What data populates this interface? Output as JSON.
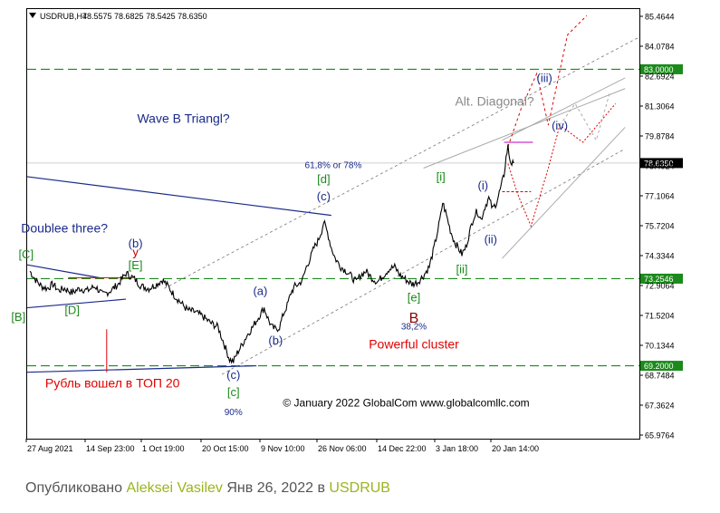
{
  "chart_data": {
    "type": "line",
    "symbol": "USDRUB,H4",
    "ohlc_header": "78.5575 78.6825 78.5425 78.6350",
    "current_price": 78.635,
    "ylim": [
      65.9764,
      85.4644
    ],
    "y_ticks": [
      "85.4644",
      "84.0784",
      "82.6924",
      "81.3064",
      "79.8784",
      "78.4924",
      "77.1064",
      "75.7204",
      "74.3344",
      "72.9064",
      "71.5204",
      "70.1344",
      "68.7484",
      "67.3624",
      "65.9764"
    ],
    "x_ticks": [
      "27 Aug 2021",
      "14 Sep 23:00",
      "1 Oct 19:00",
      "20 Oct 15:00",
      "9 Nov 10:00",
      "26 Nov 06:00",
      "14 Dec 22:00",
      "3 Jan 18:00",
      "20 Jan 14:00"
    ],
    "level_labels": [
      {
        "value": 83.0,
        "text": "83.0000",
        "color": "#1b8a1b"
      },
      {
        "value": 78.635,
        "text": "78.6350",
        "color": "#000000"
      },
      {
        "value": 73.2546,
        "text": "73.2546",
        "color": "#1b8a1b"
      },
      {
        "value": 69.2,
        "text": "69.2000",
        "color": "#1b8a1b"
      }
    ],
    "price_path": [
      [
        0,
        73.6
      ],
      [
        3,
        73.2
      ],
      [
        6,
        72.9
      ],
      [
        9,
        72.8
      ],
      [
        12,
        73.0
      ],
      [
        15,
        72.7
      ],
      [
        18,
        72.8
      ],
      [
        22,
        72.6
      ],
      [
        26,
        72.8
      ],
      [
        30,
        72.7
      ],
      [
        34,
        72.9
      ],
      [
        38,
        72.5
      ],
      [
        42,
        72.7
      ],
      [
        46,
        73.0
      ],
      [
        50,
        73.5
      ],
      [
        52,
        73.4
      ],
      [
        55,
        73.2
      ],
      [
        58,
        72.9
      ],
      [
        62,
        72.8
      ],
      [
        66,
        73.0
      ],
      [
        69,
        73.2
      ],
      [
        72,
        72.9
      ],
      [
        75,
        72.5
      ],
      [
        78,
        72.2
      ],
      [
        82,
        71.8
      ],
      [
        86,
        71.7
      ],
      [
        90,
        71.5
      ],
      [
        94,
        71.2
      ],
      [
        98,
        71.0
      ],
      [
        100,
        70.5
      ],
      [
        102,
        70.0
      ],
      [
        104,
        69.5
      ],
      [
        106,
        69.4
      ],
      [
        108,
        69.8
      ],
      [
        110,
        70.1
      ],
      [
        113,
        70.6
      ],
      [
        116,
        71.0
      ],
      [
        118,
        71.3
      ],
      [
        120,
        71.6
      ],
      [
        122,
        71.9
      ],
      [
        124,
        71.4
      ],
      [
        126,
        71.0
      ],
      [
        128,
        70.9
      ],
      [
        130,
        71.0
      ],
      [
        132,
        71.6
      ],
      [
        134,
        72.0
      ],
      [
        136,
        72.6
      ],
      [
        138,
        72.9
      ],
      [
        140,
        73.0
      ],
      [
        142,
        73.2
      ],
      [
        144,
        73.8
      ],
      [
        146,
        74.2
      ],
      [
        148,
        74.7
      ],
      [
        150,
        75.0
      ],
      [
        152,
        75.5
      ],
      [
        153,
        75.9
      ],
      [
        155,
        75.4
      ],
      [
        157,
        74.7
      ],
      [
        159,
        74.2
      ],
      [
        162,
        73.8
      ],
      [
        165,
        73.6
      ],
      [
        168,
        73.3
      ],
      [
        170,
        73.1
      ],
      [
        172,
        73.4
      ],
      [
        175,
        73.6
      ],
      [
        178,
        73.3
      ],
      [
        181,
        73.1
      ],
      [
        184,
        73.4
      ],
      [
        187,
        73.7
      ],
      [
        190,
        73.8
      ],
      [
        193,
        73.4
      ],
      [
        196,
        73.2
      ],
      [
        199,
        73.0
      ],
      [
        202,
        73.1
      ],
      [
        205,
        73.4
      ],
      [
        208,
        73.8
      ],
      [
        210,
        74.5
      ],
      [
        212,
        75.3
      ],
      [
        214,
        76.2
      ],
      [
        215,
        76.8
      ],
      [
        217,
        76.2
      ],
      [
        219,
        75.5
      ],
      [
        221,
        75.0
      ],
      [
        223,
        74.7
      ],
      [
        225,
        74.4
      ],
      [
        227,
        74.7
      ],
      [
        229,
        75.4
      ],
      [
        231,
        76.1
      ],
      [
        233,
        76.4
      ],
      [
        235,
        76.0
      ],
      [
        237,
        76.6
      ],
      [
        239,
        77.0
      ],
      [
        241,
        76.5
      ],
      [
        243,
        76.8
      ],
      [
        245,
        77.4
      ],
      [
        247,
        78.1
      ],
      [
        248,
        78.9
      ],
      [
        249,
        79.4
      ],
      [
        250,
        78.8
      ],
      [
        251,
        78.6
      ],
      [
        252,
        78.63
      ]
    ],
    "wave_labels": [
      {
        "x": -2,
        "y": 74.2,
        "text": "[C]",
        "color": "#1b8a1b"
      },
      {
        "x": 55,
        "y": 74.7,
        "text": "(b)",
        "color": "#1a2a8a"
      },
      {
        "x": 55,
        "y": 74.3,
        "text": "y",
        "color": "#c00000"
      },
      {
        "x": 55,
        "y": 73.7,
        "text": "[E]",
        "color": "#1b8a1b"
      },
      {
        "x": -6,
        "y": 71.3,
        "text": "[B]",
        "color": "#1b8a1b"
      },
      {
        "x": 22,
        "y": 71.6,
        "text": "[D]",
        "color": "#1b8a1b"
      },
      {
        "x": 120,
        "y": 72.5,
        "text": "(a)",
        "color": "#1a2a8a"
      },
      {
        "x": 128,
        "y": 70.2,
        "text": "(b)",
        "color": "#1a2a8a"
      },
      {
        "x": 106,
        "y": 68.6,
        "text": "(c)",
        "color": "#1a2a8a"
      },
      {
        "x": 106,
        "y": 67.8,
        "text": "[c]",
        "color": "#1b8a1b"
      },
      {
        "x": 153,
        "y": 77.7,
        "text": "[d]",
        "color": "#1b8a1b"
      },
      {
        "x": 153,
        "y": 76.9,
        "text": "(c)",
        "color": "#1a2a8a"
      },
      {
        "x": 214,
        "y": 77.8,
        "text": "[i]",
        "color": "#1b8a1b"
      },
      {
        "x": 236,
        "y": 77.4,
        "text": "(i)",
        "color": "#1a2a8a"
      },
      {
        "x": 240,
        "y": 74.9,
        "text": "(ii)",
        "color": "#1a2a8a"
      },
      {
        "x": 225,
        "y": 73.5,
        "text": "[ii]",
        "color": "#1b8a1b"
      },
      {
        "x": 200,
        "y": 72.2,
        "text": "[e]",
        "color": "#1b8a1b"
      },
      {
        "x": 200,
        "y": 71.2,
        "text": "B",
        "color": "#8b0000"
      },
      {
        "x": 268,
        "y": 82.4,
        "text": "(iii)",
        "color": "#1a2a8a"
      },
      {
        "x": 276,
        "y": 80.2,
        "text": "(iv)",
        "color": "#1a2a8a"
      }
    ],
    "annotations": [
      {
        "x": 80,
        "y": 80.5,
        "text": "Wave B Triangl?",
        "color": "#1a2a8a",
        "size": 14
      },
      {
        "x": 18,
        "y": 75.4,
        "text": "Doublee three?",
        "color": "#1a2a8a",
        "size": 14
      },
      {
        "x": 158,
        "y": 78.4,
        "text": "61,8% or 78%",
        "color": "#1a2a8a",
        "size": 10
      },
      {
        "x": 242,
        "y": 81.3,
        "text": "Alt. Diagonal?",
        "color": "#888888",
        "size": 14
      },
      {
        "x": 200,
        "y": 70.9,
        "text": "38,2%",
        "color": "#1a2a8a",
        "size": 10
      },
      {
        "x": 200,
        "y": 70.0,
        "text": "Powerful cluster",
        "color": "#e00000",
        "size": 14
      },
      {
        "x": 106,
        "y": 66.9,
        "text": "90%",
        "color": "#1a2a8a",
        "size": 10
      },
      {
        "x": 43,
        "y": 68.2,
        "text": "Рубль вошел в ТОП 20",
        "color": "#e00000",
        "size": 14
      },
      {
        "x": 196,
        "y": 67.3,
        "text": "© January 2022 GlobalCom www.globalcomllc.com",
        "color": "#000000",
        "size": 12
      }
    ],
    "lines": [
      {
        "x1": -7,
        "y1": 78.0,
        "x2": 157,
        "y2": 76.2,
        "color": "#1a2a8a",
        "width": 1.2,
        "dash": ""
      },
      {
        "x1": -7,
        "y1": 73.9,
        "x2": 36,
        "y2": 73.3,
        "color": "#1a2a8a",
        "width": 1.2,
        "dash": ""
      },
      {
        "x1": -7,
        "y1": 71.9,
        "x2": 50,
        "y2": 72.3,
        "color": "#1a2a8a",
        "width": 1.2,
        "dash": ""
      },
      {
        "x1": -7,
        "y1": 68.9,
        "x2": 118,
        "y2": 69.2,
        "color": "#1a2a8a",
        "width": 1.2,
        "dash": ""
      },
      {
        "x1": 40,
        "y1": 70.9,
        "x2": 40,
        "y2": 68.9,
        "color": "#e00000",
        "width": 1,
        "dash": ""
      },
      {
        "x1": 100,
        "y1": 68.8,
        "x2": 310,
        "y2": 79.3,
        "color": "#777777",
        "width": 0.8,
        "dash": "3,3"
      },
      {
        "x1": 70,
        "y1": 72.8,
        "x2": 320,
        "y2": 84.5,
        "color": "#777777",
        "width": 0.8,
        "dash": "3,3"
      },
      {
        "x1": 205,
        "y1": 78.4,
        "x2": 310,
        "y2": 82.1,
        "color": "#aaaaaa",
        "width": 1,
        "dash": ""
      },
      {
        "x1": 246,
        "y1": 79.7,
        "x2": 310,
        "y2": 82.6,
        "color": "#aaaaaa",
        "width": 1,
        "dash": ""
      },
      {
        "x1": 246,
        "y1": 74.2,
        "x2": 310,
        "y2": 80.3,
        "color": "#aaaaaa",
        "width": 1,
        "dash": ""
      },
      {
        "x1": 247,
        "y1": 79.6,
        "x2": 262,
        "y2": 79.6,
        "color": "#cc33cc",
        "width": 1.2,
        "dash": ""
      },
      {
        "x1": 246,
        "y1": 77.3,
        "x2": 261,
        "y2": 77.3,
        "color": "#e00000",
        "width": 1,
        "dash": "3,2"
      },
      {
        "x1": 20,
        "y1": 73.3,
        "x2": 54,
        "y2": 73.3,
        "color": "#e00000",
        "width": 1,
        "dash": ""
      }
    ],
    "polylines": [
      {
        "points": [
          [
            249,
            79.4
          ],
          [
            256,
            81.2
          ],
          [
            264,
            82.8
          ],
          [
            270,
            80.4
          ],
          [
            280,
            84.6
          ],
          [
            290,
            85.5
          ]
        ],
        "color": "#e00000",
        "dash": "3,3"
      },
      {
        "points": [
          [
            249,
            78.6
          ],
          [
            254,
            77.2
          ],
          [
            261,
            75.7
          ],
          [
            270,
            78.4
          ],
          [
            276,
            80.4
          ],
          [
            288,
            79.6
          ],
          [
            305,
            81.4
          ]
        ],
        "color": "#e00000",
        "dash": "2,2"
      },
      {
        "points": [
          [
            276,
            80.4
          ],
          [
            284,
            81.4
          ],
          [
            295,
            79.7
          ],
          [
            302,
            81.9
          ]
        ],
        "color": "#aaaaaa",
        "dash": "3,3"
      }
    ]
  },
  "footer": {
    "prefix": "Опубликовано",
    "author": "Aleksei Vasilev",
    "date": "Янв 26, 2022",
    "preposition": "в",
    "symbol": "USDRUB"
  }
}
